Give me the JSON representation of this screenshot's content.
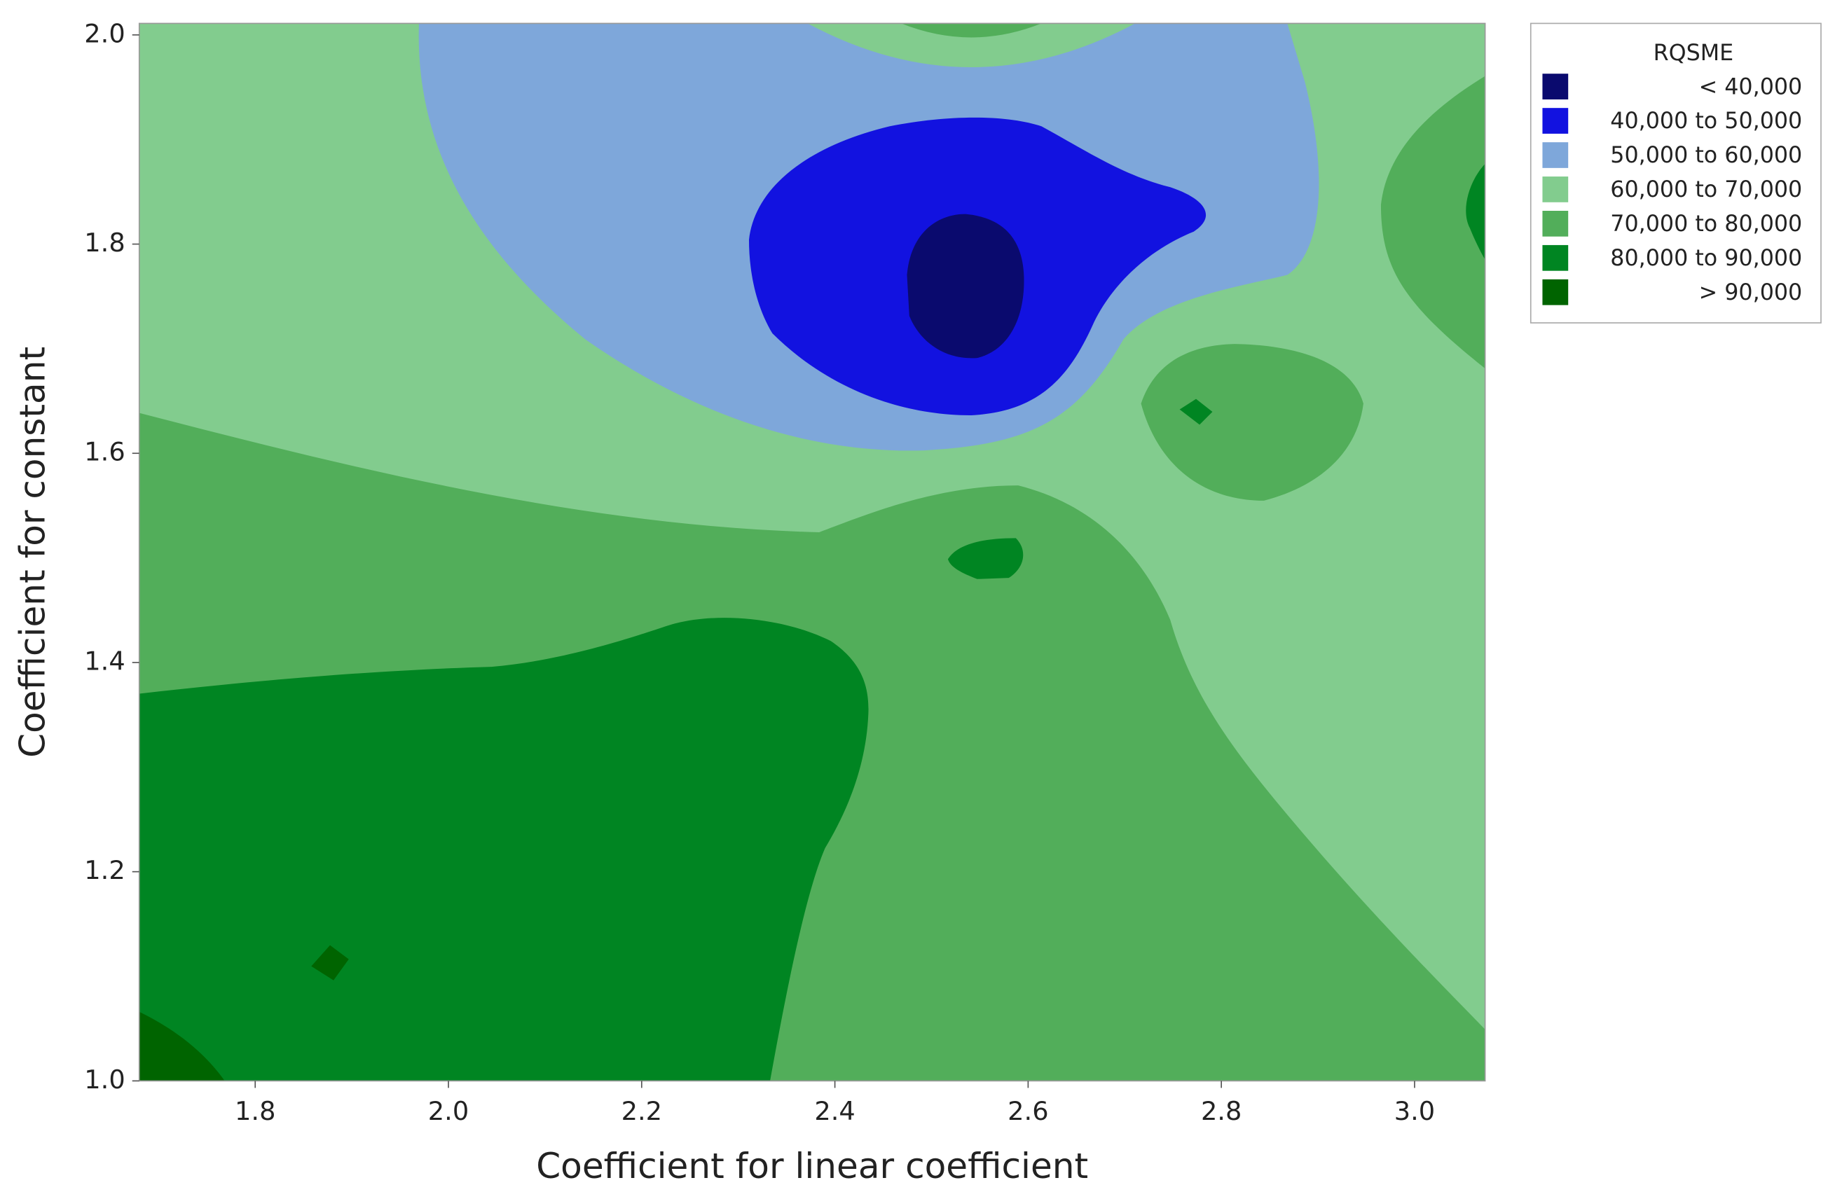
{
  "chart_data": {
    "type": "contour",
    "x_label": "Coefficient for linear coefficient",
    "y_label": "Coefficient for constant",
    "legend_title": "RQSME",
    "levels": [
      {
        "name": "< 40,000",
        "color": "#0a0a6e"
      },
      {
        "name": "40,000 to 50,000",
        "color": "#1212e0"
      },
      {
        "name": "50,000 to 60,000",
        "color": "#7ea7da"
      },
      {
        "name": "60,000 to 70,000",
        "color": "#82cc8e"
      },
      {
        "name": "70,000 to 80,000",
        "color": "#52ae5a"
      },
      {
        "name": "80,000 to 90,000",
        "color": "#008522"
      },
      {
        "name": "> 90,000",
        "color": "#006400"
      }
    ],
    "xlim": [
      1.68,
      3.073
    ],
    "xticks": [
      1.8,
      {
        "value": 2.0,
        "label": "2.0"
      },
      2.2,
      2.4,
      2.6,
      2.8,
      {
        "value": 3.0,
        "label": "3.0"
      }
    ],
    "ylim": [
      1.0,
      2.011
    ],
    "yticks": [
      {
        "value": 1.0,
        "label": "1.0"
      },
      1.2,
      1.4,
      1.6,
      1.8,
      {
        "value": 2.0,
        "label": "2.0"
      }
    ]
  }
}
